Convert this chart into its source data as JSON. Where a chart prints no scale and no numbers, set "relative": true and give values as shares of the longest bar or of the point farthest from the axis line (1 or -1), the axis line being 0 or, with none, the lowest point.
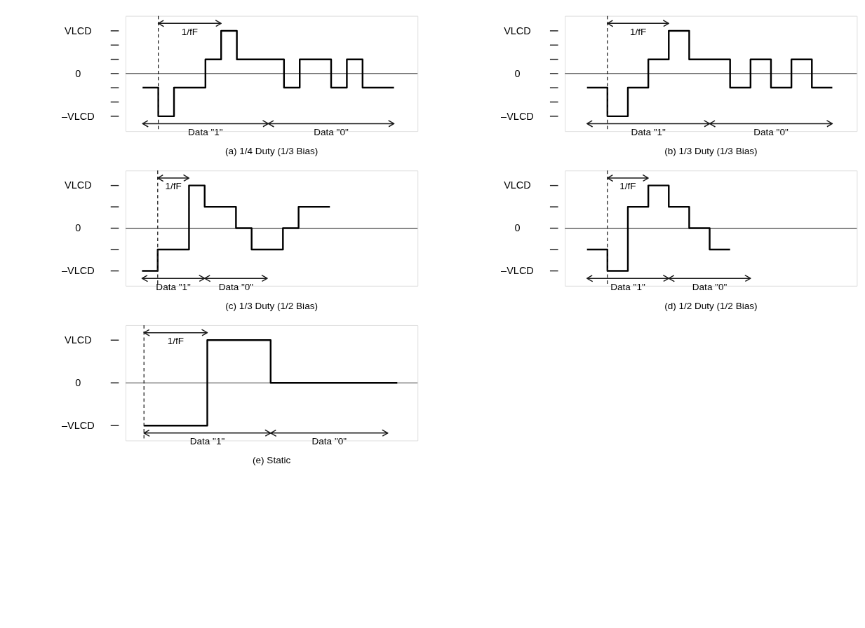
{
  "chart_data": [
    {
      "type": "step",
      "title": "(a)  1/4 Duty (1/3 Bias)",
      "relative": true,
      "categories": [
        null,
        null,
        null,
        null,
        null,
        null,
        null,
        null,
        null,
        null,
        null,
        null,
        null,
        null,
        null,
        null,
        null
      ],
      "series": [
        {
          "color": "#000000",
          "values": [
            -0.33,
            -1,
            -0.33,
            -0.33,
            0.33,
            1,
            0.33,
            0.33,
            0.33,
            -0.33,
            0.33,
            0.33,
            -0.33,
            0.33,
            -0.33,
            -0.33,
            -0.33
          ]
        }
      ],
      "annotations": [
        "VLCD",
        "0",
        "–VLCD",
        "1/fF",
        "Data \"1\"",
        "Data \"0\""
      ]
    },
    {
      "type": "step",
      "title": "(b)  1/3 Duty (1/3 Bias)",
      "relative": true,
      "categories": [
        null,
        null,
        null,
        null,
        null,
        null,
        null,
        null,
        null,
        null,
        null,
        null,
        null
      ],
      "series": [
        {
          "color": "#000000",
          "values": [
            -0.33,
            -1,
            -0.33,
            0.33,
            1,
            0.33,
            0.33,
            -0.33,
            0.33,
            -0.33,
            0.33,
            -0.33,
            -0.33
          ]
        }
      ],
      "annotations": [
        "VLCD",
        "0",
        "–VLCD",
        "1/fF",
        "Data \"1\"",
        "Data \"0\""
      ]
    },
    {
      "type": "step",
      "title": "(c)  1/3 Duty (1/2 Bias)",
      "relative": true,
      "categories": [
        null,
        null,
        null,
        null,
        null,
        null,
        null,
        null,
        null,
        null,
        null,
        null,
        null
      ],
      "series": [
        {
          "color": "#000000",
          "values": [
            -1,
            -0.5,
            -0.5,
            1,
            0.5,
            0.5,
            0,
            -0.5,
            -0.5,
            0,
            0.5,
            0.5,
            0.5
          ]
        }
      ],
      "annotations": [
        "VLCD",
        "0",
        "–VLCD",
        "1/fF",
        "Data \"1\"",
        "Data \"0\""
      ]
    },
    {
      "type": "step",
      "title": "(d)  1/2 Duty (1/2 Bias)",
      "relative": true,
      "categories": [
        null,
        null,
        null,
        null,
        null,
        null,
        null,
        null
      ],
      "series": [
        {
          "color": "#000000",
          "values": [
            -0.5,
            -1,
            0.5,
            1,
            0.5,
            0,
            -0.5,
            -0.5
          ]
        }
      ],
      "annotations": [
        "VLCD",
        "0",
        "–VLCD",
        "1/fF",
        "Data \"1\"",
        "Data \"0\""
      ]
    },
    {
      "type": "step",
      "title": "(e)  Static",
      "relative": true,
      "categories": [
        null,
        null,
        null,
        null,
        null
      ],
      "series": [
        {
          "color": "#000000",
          "values": [
            -1,
            1,
            0,
            0,
            0
          ]
        }
      ],
      "annotations": [
        "VLCD",
        "0",
        "–VLCD",
        "1/fF",
        "Data \"1\"",
        "Data \"0\""
      ]
    }
  ]
}
